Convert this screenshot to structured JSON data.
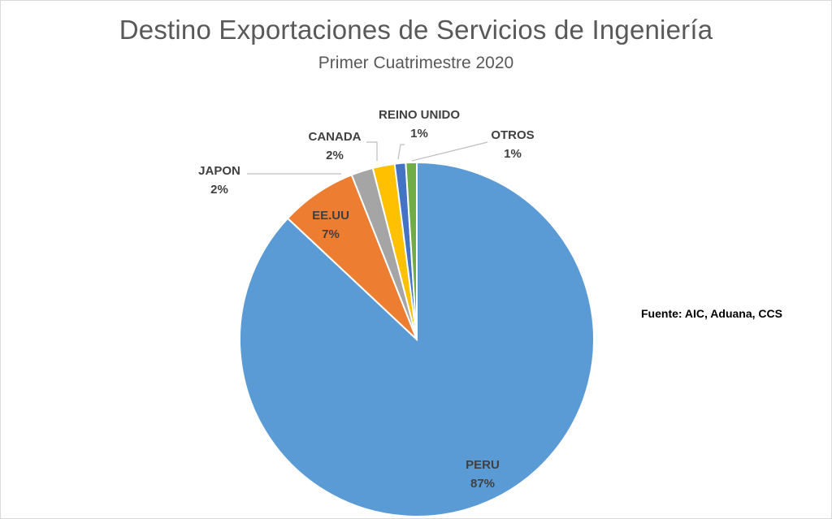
{
  "chart_data": {
    "type": "pie",
    "title": "Destino Exportaciones de Servicios de Ingeniería",
    "subtitle": "Primer Cuatrimestre 2020",
    "source_note": "Fuente: AIC, Aduana, CCS",
    "slices": [
      {
        "label": "PERU",
        "value": 87,
        "display": "87%",
        "color": "#5b9bd5"
      },
      {
        "label": "EE.UU",
        "value": 7,
        "display": "7%",
        "color": "#ed7d31"
      },
      {
        "label": "JAPON",
        "value": 2,
        "display": "2%",
        "color": "#a5a5a5"
      },
      {
        "label": "CANADA",
        "value": 2,
        "display": "2%",
        "color": "#ffc000"
      },
      {
        "label": "REINO UNIDO",
        "value": 1,
        "display": "1%",
        "color": "#4472c4"
      },
      {
        "label": "OTROS",
        "value": 1,
        "display": "1%",
        "color": "#70ad47"
      }
    ],
    "start_angle_deg": 0,
    "direction": "clockwise",
    "legend": "none"
  }
}
